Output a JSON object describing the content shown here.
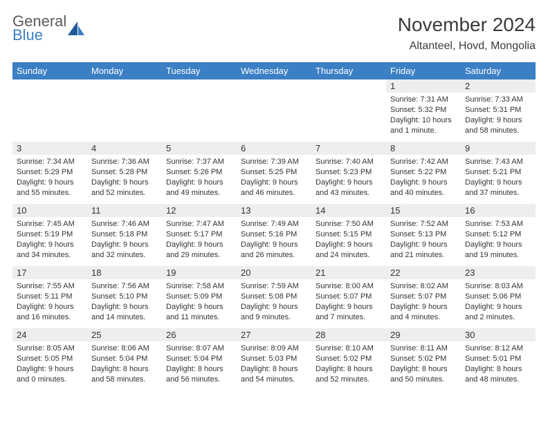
{
  "logo": {
    "word1": "General",
    "word2": "Blue"
  },
  "title": "November 2024",
  "location": "Altanteel, Hovd, Mongolia",
  "colors": {
    "header_bg": "#3b7fc4",
    "header_text": "#ffffff",
    "daybar_bg": "#eeeeee",
    "text": "#333333",
    "logo_gray": "#5a5a5a",
    "logo_blue": "#3b7fc4"
  },
  "day_headers": [
    "Sunday",
    "Monday",
    "Tuesday",
    "Wednesday",
    "Thursday",
    "Friday",
    "Saturday"
  ],
  "weeks": [
    [
      null,
      null,
      null,
      null,
      null,
      {
        "n": "1",
        "sunrise": "Sunrise: 7:31 AM",
        "sunset": "Sunset: 5:32 PM",
        "daylight": "Daylight: 10 hours and 1 minute."
      },
      {
        "n": "2",
        "sunrise": "Sunrise: 7:33 AM",
        "sunset": "Sunset: 5:31 PM",
        "daylight": "Daylight: 9 hours and 58 minutes."
      }
    ],
    [
      {
        "n": "3",
        "sunrise": "Sunrise: 7:34 AM",
        "sunset": "Sunset: 5:29 PM",
        "daylight": "Daylight: 9 hours and 55 minutes."
      },
      {
        "n": "4",
        "sunrise": "Sunrise: 7:36 AM",
        "sunset": "Sunset: 5:28 PM",
        "daylight": "Daylight: 9 hours and 52 minutes."
      },
      {
        "n": "5",
        "sunrise": "Sunrise: 7:37 AM",
        "sunset": "Sunset: 5:26 PM",
        "daylight": "Daylight: 9 hours and 49 minutes."
      },
      {
        "n": "6",
        "sunrise": "Sunrise: 7:39 AM",
        "sunset": "Sunset: 5:25 PM",
        "daylight": "Daylight: 9 hours and 46 minutes."
      },
      {
        "n": "7",
        "sunrise": "Sunrise: 7:40 AM",
        "sunset": "Sunset: 5:23 PM",
        "daylight": "Daylight: 9 hours and 43 minutes."
      },
      {
        "n": "8",
        "sunrise": "Sunrise: 7:42 AM",
        "sunset": "Sunset: 5:22 PM",
        "daylight": "Daylight: 9 hours and 40 minutes."
      },
      {
        "n": "9",
        "sunrise": "Sunrise: 7:43 AM",
        "sunset": "Sunset: 5:21 PM",
        "daylight": "Daylight: 9 hours and 37 minutes."
      }
    ],
    [
      {
        "n": "10",
        "sunrise": "Sunrise: 7:45 AM",
        "sunset": "Sunset: 5:19 PM",
        "daylight": "Daylight: 9 hours and 34 minutes."
      },
      {
        "n": "11",
        "sunrise": "Sunrise: 7:46 AM",
        "sunset": "Sunset: 5:18 PM",
        "daylight": "Daylight: 9 hours and 32 minutes."
      },
      {
        "n": "12",
        "sunrise": "Sunrise: 7:47 AM",
        "sunset": "Sunset: 5:17 PM",
        "daylight": "Daylight: 9 hours and 29 minutes."
      },
      {
        "n": "13",
        "sunrise": "Sunrise: 7:49 AM",
        "sunset": "Sunset: 5:16 PM",
        "daylight": "Daylight: 9 hours and 26 minutes."
      },
      {
        "n": "14",
        "sunrise": "Sunrise: 7:50 AM",
        "sunset": "Sunset: 5:15 PM",
        "daylight": "Daylight: 9 hours and 24 minutes."
      },
      {
        "n": "15",
        "sunrise": "Sunrise: 7:52 AM",
        "sunset": "Sunset: 5:13 PM",
        "daylight": "Daylight: 9 hours and 21 minutes."
      },
      {
        "n": "16",
        "sunrise": "Sunrise: 7:53 AM",
        "sunset": "Sunset: 5:12 PM",
        "daylight": "Daylight: 9 hours and 19 minutes."
      }
    ],
    [
      {
        "n": "17",
        "sunrise": "Sunrise: 7:55 AM",
        "sunset": "Sunset: 5:11 PM",
        "daylight": "Daylight: 9 hours and 16 minutes."
      },
      {
        "n": "18",
        "sunrise": "Sunrise: 7:56 AM",
        "sunset": "Sunset: 5:10 PM",
        "daylight": "Daylight: 9 hours and 14 minutes."
      },
      {
        "n": "19",
        "sunrise": "Sunrise: 7:58 AM",
        "sunset": "Sunset: 5:09 PM",
        "daylight": "Daylight: 9 hours and 11 minutes."
      },
      {
        "n": "20",
        "sunrise": "Sunrise: 7:59 AM",
        "sunset": "Sunset: 5:08 PM",
        "daylight": "Daylight: 9 hours and 9 minutes."
      },
      {
        "n": "21",
        "sunrise": "Sunrise: 8:00 AM",
        "sunset": "Sunset: 5:07 PM",
        "daylight": "Daylight: 9 hours and 7 minutes."
      },
      {
        "n": "22",
        "sunrise": "Sunrise: 8:02 AM",
        "sunset": "Sunset: 5:07 PM",
        "daylight": "Daylight: 9 hours and 4 minutes."
      },
      {
        "n": "23",
        "sunrise": "Sunrise: 8:03 AM",
        "sunset": "Sunset: 5:06 PM",
        "daylight": "Daylight: 9 hours and 2 minutes."
      }
    ],
    [
      {
        "n": "24",
        "sunrise": "Sunrise: 8:05 AM",
        "sunset": "Sunset: 5:05 PM",
        "daylight": "Daylight: 9 hours and 0 minutes."
      },
      {
        "n": "25",
        "sunrise": "Sunrise: 8:06 AM",
        "sunset": "Sunset: 5:04 PM",
        "daylight": "Daylight: 8 hours and 58 minutes."
      },
      {
        "n": "26",
        "sunrise": "Sunrise: 8:07 AM",
        "sunset": "Sunset: 5:04 PM",
        "daylight": "Daylight: 8 hours and 56 minutes."
      },
      {
        "n": "27",
        "sunrise": "Sunrise: 8:09 AM",
        "sunset": "Sunset: 5:03 PM",
        "daylight": "Daylight: 8 hours and 54 minutes."
      },
      {
        "n": "28",
        "sunrise": "Sunrise: 8:10 AM",
        "sunset": "Sunset: 5:02 PM",
        "daylight": "Daylight: 8 hours and 52 minutes."
      },
      {
        "n": "29",
        "sunrise": "Sunrise: 8:11 AM",
        "sunset": "Sunset: 5:02 PM",
        "daylight": "Daylight: 8 hours and 50 minutes."
      },
      {
        "n": "30",
        "sunrise": "Sunrise: 8:12 AM",
        "sunset": "Sunset: 5:01 PM",
        "daylight": "Daylight: 8 hours and 48 minutes."
      }
    ]
  ]
}
